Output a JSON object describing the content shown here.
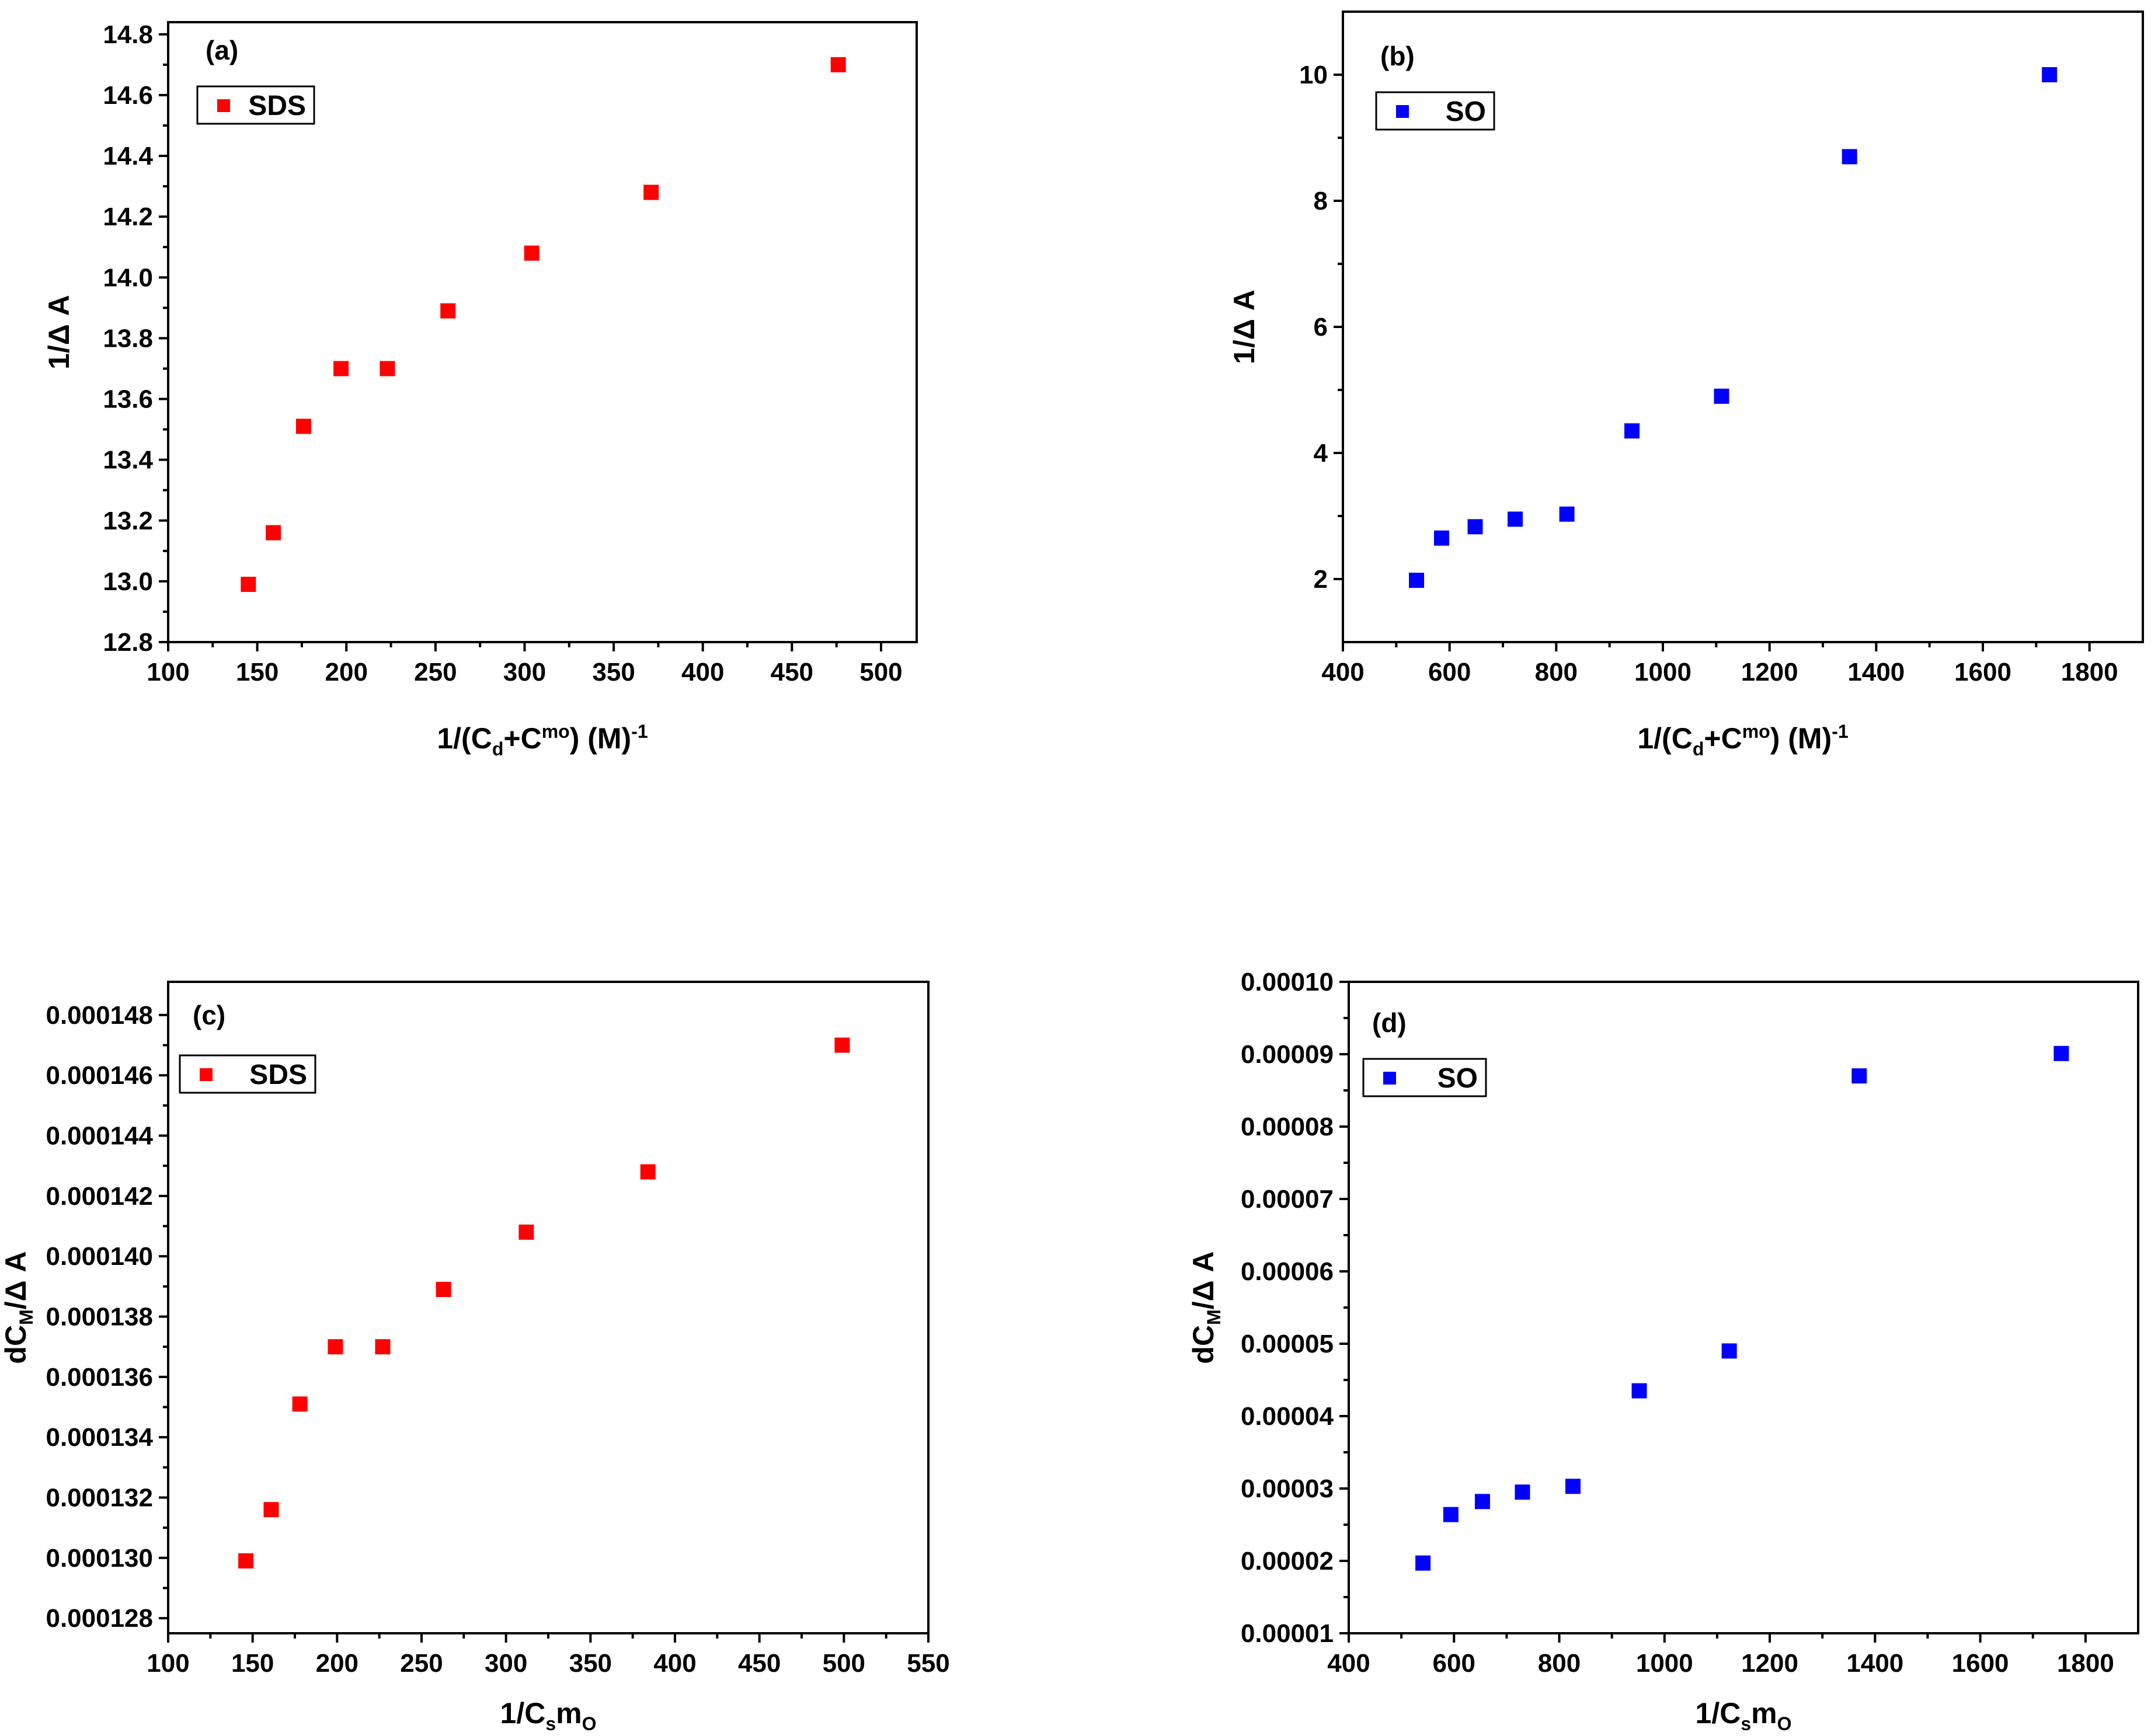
{
  "chart_data": [
    {
      "id": "a",
      "type": "scatter",
      "panel_label": "(a)",
      "legend": "SDS",
      "color": "#ff0000",
      "xlabel": {
        "pre": "1/(C",
        "sub": "d",
        "mid": "+C",
        "sup": "mo",
        "post": ") (M)",
        "sup2": "-1"
      },
      "ylabel": "1/Δ A",
      "xlim": [
        100,
        520
      ],
      "ylim": [
        12.8,
        14.84
      ],
      "xticks": [
        100,
        150,
        200,
        250,
        300,
        350,
        400,
        450,
        500
      ],
      "yticks": [
        12.8,
        13.0,
        13.2,
        13.4,
        13.6,
        13.8,
        14.0,
        14.2,
        14.4,
        14.6,
        14.8
      ],
      "xtick_labels": [
        "100",
        "150",
        "200",
        "250",
        "300",
        "350",
        "400",
        "450",
        "500"
      ],
      "ytick_labels": [
        "12.8",
        "13.0",
        "13.2",
        "13.4",
        "13.6",
        "13.8",
        "14.0",
        "14.2",
        "14.4",
        "14.6",
        "14.8"
      ],
      "x": [
        145,
        159,
        176,
        197,
        223,
        257,
        304,
        371,
        476
      ],
      "y": [
        12.99,
        13.16,
        13.51,
        13.7,
        13.7,
        13.89,
        14.08,
        14.28,
        14.7
      ]
    },
    {
      "id": "b",
      "type": "scatter",
      "panel_label": "(b)",
      "legend": "SO",
      "color": "#0000ff",
      "xlabel": {
        "pre": "1/(C",
        "sub": "d",
        "mid": "+C",
        "sup": "mo",
        "post": ") (M)",
        "sup2": "-1"
      },
      "ylabel": "1/Δ A",
      "xlim": [
        400,
        1900
      ],
      "ylim": [
        1,
        11
      ],
      "xticks": [
        400,
        600,
        800,
        1000,
        1200,
        1400,
        1600,
        1800
      ],
      "yticks": [
        2,
        4,
        6,
        8,
        10
      ],
      "xtick_labels": [
        "400",
        "600",
        "800",
        "1000",
        "1200",
        "1400",
        "1600",
        "1800"
      ],
      "ytick_labels": [
        "2",
        "4",
        "6",
        "8",
        "10"
      ],
      "x": [
        538,
        585,
        648,
        723,
        820,
        942,
        1110,
        1350,
        1725
      ],
      "y": [
        1.98,
        2.65,
        2.83,
        2.95,
        3.03,
        4.35,
        4.9,
        8.7,
        10.0
      ]
    },
    {
      "id": "c",
      "type": "scatter",
      "panel_label": "(c)",
      "legend": "SDS",
      "color": "#ff0000",
      "xlabel": {
        "pre": "1/C",
        "sub": "s",
        "mid": "m",
        "sub2": "O"
      },
      "ylabel_parts": {
        "pre": "dC",
        "sub": "M",
        "post": "/Δ A"
      },
      "xlim": [
        100,
        550
      ],
      "ylim": [
        0.0001275,
        0.0001491
      ],
      "xticks": [
        100,
        150,
        200,
        250,
        300,
        350,
        400,
        450,
        500,
        550
      ],
      "yticks": [
        0.000128,
        0.00013,
        0.000132,
        0.000134,
        0.000136,
        0.000138,
        0.00014,
        0.000142,
        0.000144,
        0.000146,
        0.000148
      ],
      "xtick_labels": [
        "100",
        "150",
        "200",
        "250",
        "300",
        "350",
        "400",
        "450",
        "500",
        "550"
      ],
      "ytick_labels": [
        "0.000128",
        "0.000130",
        "0.000132",
        "0.000134",
        "0.000136",
        "0.000138",
        "0.000140",
        "0.000142",
        "0.000144",
        "0.000146",
        "0.000148"
      ],
      "x": [
        146,
        161,
        178,
        199,
        227,
        263,
        312,
        384,
        499
      ],
      "y": [
        0.0001299,
        0.0001316,
        0.0001351,
        0.000137,
        0.000137,
        0.0001389,
        0.0001408,
        0.0001428,
        0.000147
      ]
    },
    {
      "id": "d",
      "type": "scatter",
      "panel_label": "(d)",
      "legend": "SO",
      "color": "#0000ff",
      "xlabel": {
        "pre": "1/C",
        "sub": "s",
        "mid": "m",
        "sub2": "O"
      },
      "ylabel_parts": {
        "pre": "dC",
        "sub": "M",
        "post": "/Δ A"
      },
      "xlim": [
        400,
        1900
      ],
      "ylim": [
        1e-05,
        0.0001
      ],
      "xticks": [
        400,
        600,
        800,
        1000,
        1200,
        1400,
        1600,
        1800
      ],
      "yticks": [
        1e-05,
        2e-05,
        3e-05,
        4e-05,
        5e-05,
        6e-05,
        7e-05,
        8e-05,
        9e-05,
        0.0001
      ],
      "xtick_labels": [
        "400",
        "600",
        "800",
        "1000",
        "1200",
        "1400",
        "1600",
        "1800"
      ],
      "ytick_labels": [
        "0.00001",
        "0.00002",
        "0.00003",
        "0.00004",
        "0.00005",
        "0.00006",
        "0.00007",
        "0.00008",
        "0.00009",
        "0.00010"
      ],
      "x": [
        541,
        594,
        654,
        730,
        826,
        952,
        1123,
        1370,
        1754
      ],
      "y": [
        1.97e-05,
        2.64e-05,
        2.82e-05,
        2.95e-05,
        3.03e-05,
        4.35e-05,
        4.9e-05,
        8.7e-05,
        9.01e-05
      ]
    }
  ]
}
